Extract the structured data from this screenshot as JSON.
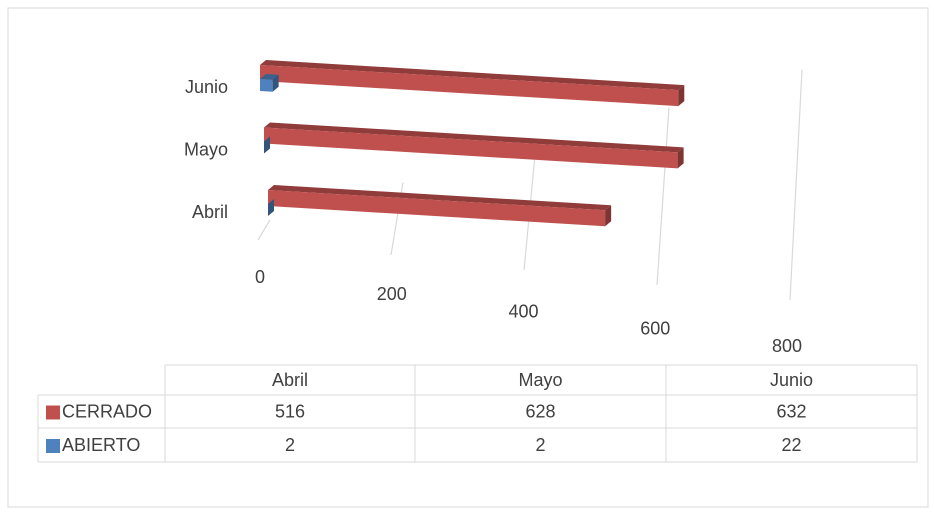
{
  "chart_data": {
    "type": "bar3d",
    "orientation": "horizontal",
    "categories": [
      "Abril",
      "Mayo",
      "Junio"
    ],
    "series": [
      {
        "name": "CERRADO",
        "color": "#c0504d",
        "values": [
          516,
          628,
          632
        ]
      },
      {
        "name": "ABIERTO",
        "color": "#4f81bd",
        "values": [
          2,
          2,
          22
        ]
      }
    ],
    "xlim": [
      0,
      800
    ],
    "xticks": [
      0,
      200,
      400,
      600,
      800
    ],
    "grid": true,
    "data_table": true
  }
}
